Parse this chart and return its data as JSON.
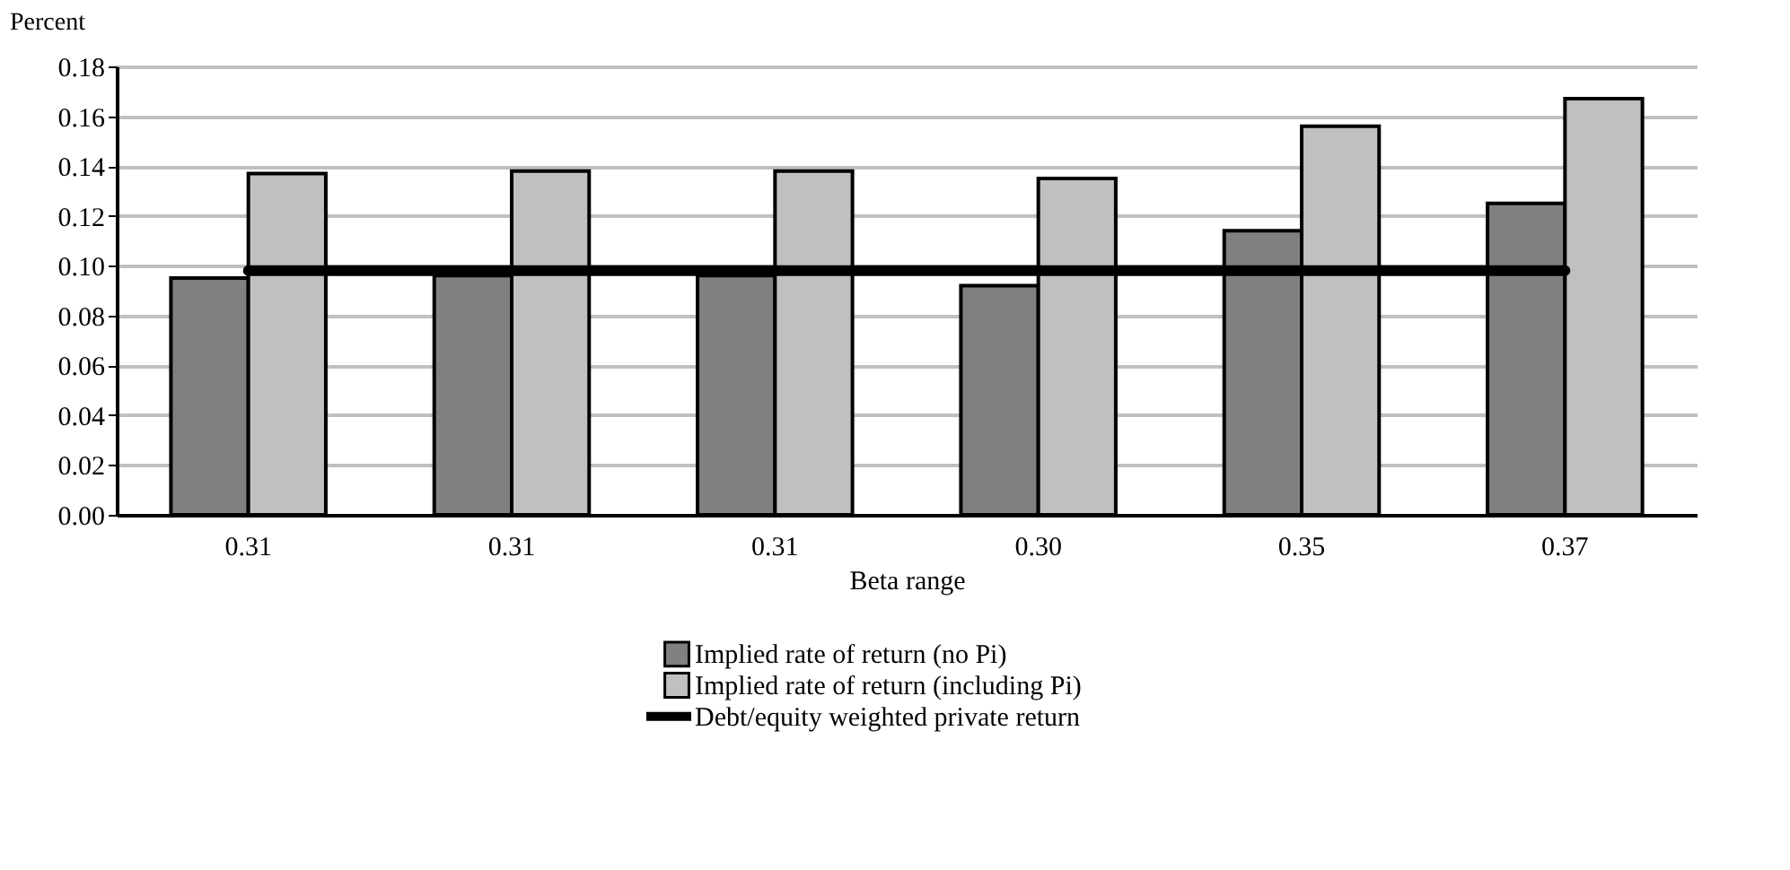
{
  "chart_data": {
    "type": "bar",
    "ylabel": "Percent",
    "xlabel": "Beta range",
    "categories": [
      "0.31",
      "0.31",
      "0.31",
      "0.30",
      "0.35",
      "0.37"
    ],
    "series": [
      {
        "name": "Implied rate of return (no Pi)",
        "color": "#808080",
        "values": [
          0.095,
          0.096,
          0.096,
          0.092,
          0.114,
          0.125
        ]
      },
      {
        "name": "Implied rate of return (including Pi)",
        "color": "#c0c0c0",
        "values": [
          0.137,
          0.138,
          0.138,
          0.135,
          0.156,
          0.167
        ]
      },
      {
        "name": "Debt/equity weighted private return",
        "type": "line",
        "color": "#000000",
        "values": [
          0.098,
          0.098,
          0.098,
          0.098,
          0.098,
          0.098
        ]
      }
    ],
    "ylim": [
      0,
      0.18
    ],
    "yticks": [
      {
        "value": 0,
        "label": "0.00"
      },
      {
        "value": 0.02,
        "label": "0.02"
      },
      {
        "value": 0.04,
        "label": "0.04"
      },
      {
        "value": 0.06,
        "label": "0.06"
      },
      {
        "value": 0.08,
        "label": "0.08"
      },
      {
        "value": 0.1,
        "label": "0.10"
      },
      {
        "value": 0.12,
        "label": "0.12"
      },
      {
        "value": 0.14,
        "label": "0.14"
      },
      {
        "value": 0.16,
        "label": "0.16"
      },
      {
        "value": 0.18,
        "label": "0.18"
      }
    ],
    "grid": "y",
    "legend": "bottom"
  }
}
